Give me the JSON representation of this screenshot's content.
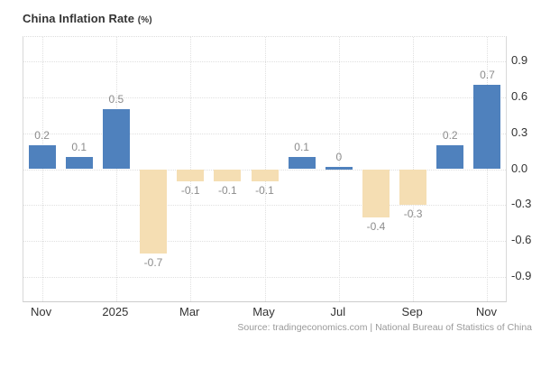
{
  "header": {
    "title": "China Inflation Rate",
    "unit": "(%)"
  },
  "footer": {
    "source": "Source: tradingeconomics.com | National Bureau of Statistics of China"
  },
  "colors": {
    "positive_bar": "#4f81bd",
    "negative_bar": "#f5deb3",
    "grid": "#e0e0e0",
    "axis_border": "#d9d9d9",
    "data_label": "#8c8c8c",
    "tick_label": "#333333",
    "source_text": "#999999",
    "title_text": "#333333",
    "background": "#ffffff"
  },
  "chart_data": {
    "type": "bar",
    "title": "China Inflation Rate",
    "ylabel": "%",
    "categories": [
      "Nov",
      "",
      "2025",
      "",
      "Mar",
      "",
      "May",
      "",
      "Jul",
      "",
      "Sep",
      "",
      "Nov"
    ],
    "values": [
      0.2,
      0.1,
      0.5,
      -0.7,
      -0.1,
      -0.1,
      -0.1,
      0.1,
      0,
      -0.4,
      -0.3,
      0.2,
      0.7
    ],
    "data_labels": [
      "0.2",
      "0.1",
      "0.5",
      "-0.7",
      "-0.1",
      "-0.1",
      "-0.1",
      "0.1",
      "0",
      "-0.4",
      "-0.3",
      "0.2",
      "0.7"
    ],
    "x_tick_labels": [
      "Nov",
      "2025",
      "Mar",
      "May",
      "Jul",
      "Sep",
      "Nov"
    ],
    "x_tick_indices": [
      0,
      2,
      4,
      6,
      8,
      10,
      12
    ],
    "y_tick_labels": [
      "0.9",
      "0.6",
      "0.3",
      "0.0",
      "-0.3",
      "-0.6",
      "-0.9"
    ],
    "y_ticks": [
      0.9,
      0.6,
      0.3,
      0.0,
      -0.3,
      -0.6,
      -0.9
    ],
    "ylim": [
      -1.1,
      1.1
    ],
    "grid": true,
    "legend_position": "none",
    "value_axis_side": "right"
  }
}
